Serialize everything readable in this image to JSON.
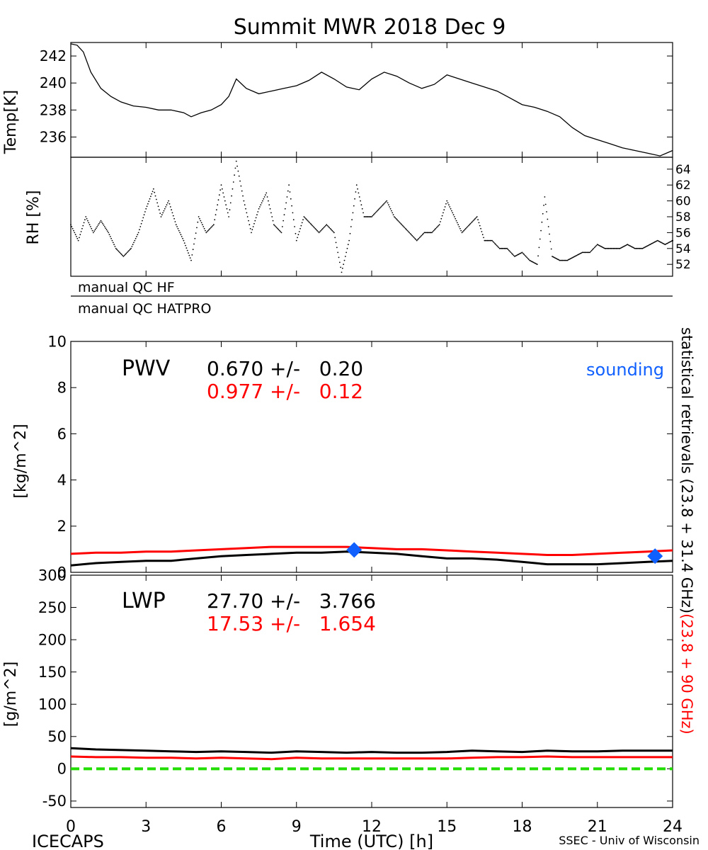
{
  "title": "Summit MWR 2018 Dec  9",
  "footer": {
    "left": "ICECAPS",
    "center": "Time (UTC) [h]",
    "right": "SSEC - Univ of Wisconsin"
  },
  "qc_labels": [
    "manual QC HF",
    "manual QC HATPRO"
  ],
  "side_label": {
    "black": "statistical retrievals (23.8 + 31.4 GHz)",
    "red": "(23.8 + 90 GHz)"
  },
  "colors": {
    "black": "#000000",
    "red": "#ff0000",
    "blue": "#1060ff",
    "green": "#22dd00"
  },
  "chart_data": [
    {
      "id": "temp",
      "type": "line",
      "ylabel": "Temp[K]",
      "xlim": [
        0,
        24
      ],
      "ylim": [
        234.5,
        243
      ],
      "yticks": [
        236,
        238,
        240,
        242
      ],
      "x": [
        0,
        0.25,
        0.5,
        0.8,
        1.2,
        1.6,
        2,
        2.5,
        3,
        3.5,
        4,
        4.5,
        4.8,
        5.2,
        5.6,
        6,
        6.3,
        6.6,
        7,
        7.5,
        8,
        8.5,
        9,
        9.5,
        10,
        10.5,
        11,
        11.5,
        12,
        12.5,
        13,
        13.5,
        14,
        14.5,
        15,
        15.5,
        16,
        16.5,
        17,
        17.5,
        18,
        18.5,
        19,
        19.5,
        20,
        20.5,
        21,
        21.5,
        22,
        22.5,
        23,
        23.5,
        24
      ],
      "series": [
        {
          "color": "black",
          "values": [
            242.9,
            242.8,
            242.3,
            240.8,
            239.6,
            239,
            238.6,
            238.3,
            238.2,
            238,
            238,
            237.8,
            237.5,
            237.8,
            238,
            238.4,
            239,
            240.3,
            239.6,
            239.2,
            239.4,
            239.6,
            239.8,
            240.2,
            240.8,
            240.3,
            239.7,
            239.5,
            240.3,
            240.8,
            240.5,
            240,
            239.6,
            239.9,
            240.6,
            240.3,
            240,
            239.7,
            239.4,
            238.9,
            238.4,
            238.2,
            237.9,
            237.5,
            236.7,
            236.1,
            235.8,
            235.5,
            235.2,
            235,
            234.8,
            234.6,
            235
          ]
        }
      ]
    },
    {
      "id": "rh",
      "type": "scatter",
      "ylabel": "RH [%]",
      "xlim": [
        0,
        24
      ],
      "ylim": [
        50.5,
        65.5
      ],
      "yticks": [
        52,
        54,
        56,
        58,
        60,
        62,
        64
      ],
      "x": [
        0,
        0.3,
        0.6,
        0.9,
        1.2,
        1.5,
        1.8,
        2.1,
        2.4,
        2.7,
        3,
        3.3,
        3.6,
        3.9,
        4.2,
        4.5,
        4.8,
        5.1,
        5.4,
        5.7,
        6,
        6.3,
        6.6,
        6.9,
        7.2,
        7.5,
        7.8,
        8.1,
        8.4,
        8.7,
        9,
        9.3,
        9.6,
        9.9,
        10.2,
        10.5,
        10.8,
        11.1,
        11.4,
        11.7,
        12,
        12.3,
        12.6,
        12.9,
        13.2,
        13.5,
        13.8,
        14.1,
        14.4,
        14.7,
        15,
        15.3,
        15.6,
        15.9,
        16.2,
        16.5,
        16.8,
        17.1,
        17.4,
        17.7,
        18,
        18.3,
        18.6,
        18.9,
        19.2,
        19.5,
        19.8,
        20.1,
        20.4,
        20.7,
        21,
        21.3,
        21.6,
        21.9,
        22.2,
        22.5,
        22.8,
        23.1,
        23.4,
        23.7,
        24
      ],
      "series": [
        {
          "color": "black",
          "values": [
            57,
            55,
            58,
            56,
            57.5,
            56,
            54,
            53,
            54,
            56,
            59,
            61.5,
            58,
            60,
            57,
            55,
            52.5,
            58,
            56,
            57,
            62,
            58,
            65,
            60,
            56,
            59,
            61,
            57,
            56,
            62,
            55,
            58,
            57,
            56,
            57,
            56,
            51,
            55,
            62,
            58,
            58,
            59,
            60,
            58,
            57,
            56,
            55,
            56,
            56,
            57,
            60,
            58,
            56,
            57,
            58,
            55,
            55,
            54,
            54,
            53,
            53.5,
            52.5,
            52,
            60.5,
            53,
            52.5,
            52.5,
            53,
            53.5,
            53.5,
            54.5,
            54,
            54,
            54,
            54.5,
            54,
            54,
            54.5,
            55,
            54.5,
            55
          ]
        }
      ]
    },
    {
      "id": "pwv",
      "type": "line",
      "ylabel": "[kg/m^2]",
      "annotation": "PWV",
      "stats": [
        {
          "color": "black",
          "text": "0.670 +/-   0.20"
        },
        {
          "color": "red",
          "text": "0.977 +/-   0.12"
        }
      ],
      "legend": "sounding",
      "xlim": [
        0,
        24
      ],
      "ylim": [
        0,
        10
      ],
      "yticks": [
        0,
        2,
        4,
        6,
        8,
        10
      ],
      "x": [
        0,
        1,
        2,
        3,
        4,
        5,
        6,
        7,
        8,
        9,
        10,
        11,
        12,
        13,
        14,
        15,
        16,
        17,
        18,
        19,
        20,
        21,
        22,
        23,
        24
      ],
      "series": [
        {
          "color": "black",
          "values": [
            0.3,
            0.4,
            0.45,
            0.5,
            0.5,
            0.6,
            0.7,
            0.75,
            0.8,
            0.85,
            0.85,
            0.9,
            0.85,
            0.8,
            0.7,
            0.6,
            0.6,
            0.55,
            0.45,
            0.35,
            0.35,
            0.35,
            0.4,
            0.45,
            0.5
          ]
        },
        {
          "color": "red",
          "values": [
            0.8,
            0.85,
            0.85,
            0.9,
            0.9,
            0.95,
            1.0,
            1.05,
            1.1,
            1.1,
            1.1,
            1.1,
            1.05,
            1.0,
            1.0,
            0.95,
            0.9,
            0.85,
            0.8,
            0.75,
            0.75,
            0.8,
            0.85,
            0.9,
            0.95
          ]
        }
      ],
      "points": [
        {
          "x": 11.3,
          "y": 0.97,
          "color": "blue"
        },
        {
          "x": 23.3,
          "y": 0.7,
          "color": "blue"
        }
      ]
    },
    {
      "id": "lwp",
      "type": "line",
      "ylabel": "[g/m^2]",
      "annotation": "LWP",
      "stats": [
        {
          "color": "black",
          "text": "27.70 +/-   3.766"
        },
        {
          "color": "red",
          "text": "17.53 +/-   1.654"
        }
      ],
      "xlabel": "Time (UTC) [h]",
      "xlim": [
        0,
        24
      ],
      "xticks": [
        0,
        3,
        6,
        9,
        12,
        15,
        18,
        21,
        24
      ],
      "ylim": [
        -60,
        300
      ],
      "yticks": [
        -50,
        0,
        50,
        100,
        150,
        200,
        250,
        300
      ],
      "x": [
        0,
        1,
        2,
        3,
        4,
        5,
        6,
        7,
        8,
        9,
        10,
        11,
        12,
        13,
        14,
        15,
        16,
        17,
        18,
        19,
        20,
        21,
        22,
        23,
        24
      ],
      "series": [
        {
          "color": "black",
          "values": [
            32,
            30,
            29,
            28,
            27,
            26,
            27,
            26,
            25,
            27,
            26,
            25,
            26,
            25,
            25,
            26,
            28,
            27,
            26,
            28,
            27,
            27,
            28,
            28,
            28
          ]
        },
        {
          "color": "red",
          "values": [
            19,
            18,
            18,
            17,
            17,
            16,
            17,
            16,
            15,
            17,
            16,
            16,
            16,
            16,
            16,
            16,
            17,
            18,
            18,
            19,
            18,
            18,
            18,
            18,
            18
          ]
        }
      ],
      "zero_line": 0
    }
  ]
}
